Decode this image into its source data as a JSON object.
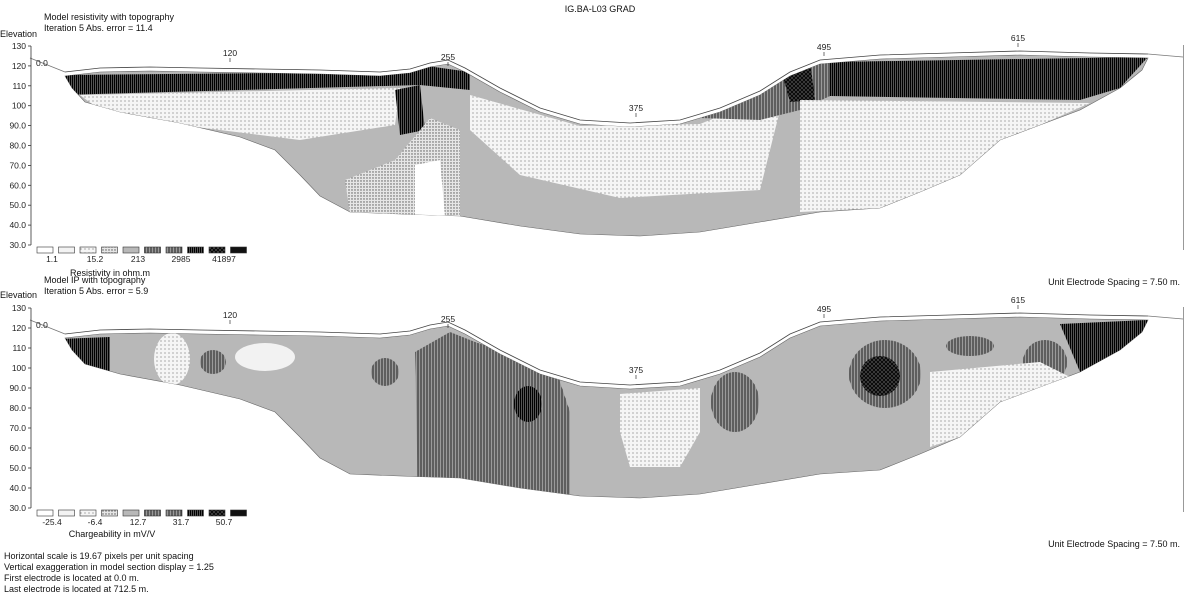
{
  "title": "IG.BA-L03 GRAD",
  "unit_spacing_label": "Unit Electrode Spacing = 7.50 m.",
  "footer_lines": [
    "Horizontal scale is 19.67 pixels per unit spacing",
    "Vertical exaggeration in model section display = 1.25",
    "First electrode is located at 0.0  m.",
    "Last electrode is located at 712.5 m."
  ],
  "colors": {
    "l0": "#ffffff",
    "l1": "#f2f2f2",
    "l2": "#e3e3e3",
    "l3": "#c8c8c8",
    "l4": "#b8b8b8",
    "l5": "#9a9a9a",
    "l6": "#707070",
    "l7": "#3a3a3a",
    "l8": "#111111"
  },
  "chart_data": [
    {
      "type": "heatmap",
      "title": "Model resistivity with topography",
      "subtitle": "Iteration 5 Abs. error = 11.4",
      "ylabel": "Elevation",
      "ylim": [
        30,
        130
      ],
      "yticks": [
        "130",
        "120",
        "110",
        "100",
        "90.0",
        "80.0",
        "70.0",
        "60.0",
        "50.0",
        "40.0",
        "30.0"
      ],
      "xlim": [
        0,
        712.5
      ],
      "x_markers": [
        "0.0",
        "120",
        "255",
        "375",
        "495",
        "615"
      ],
      "legend_values": [
        "1.1",
        "15.2",
        "213",
        "2985",
        "41897"
      ],
      "legend_label": "Resistivity in ohm.m"
    },
    {
      "type": "heatmap",
      "title": "Model IP with topography",
      "subtitle": "Iteration 5 Abs. error = 5.9",
      "ylabel": "Elevation",
      "ylim": [
        30,
        130
      ],
      "yticks": [
        "130",
        "120",
        "110",
        "100",
        "90.0",
        "80.0",
        "70.0",
        "60.0",
        "50.0",
        "40.0",
        "30.0"
      ],
      "xlim": [
        0,
        712.5
      ],
      "x_markers": [
        "0.0",
        "120",
        "255",
        "375",
        "495",
        "615"
      ],
      "legend_values": [
        "-25.4",
        "-6.4",
        "12.7",
        "31.7",
        "50.7"
      ],
      "legend_label": "Chargeability in mV/V"
    }
  ]
}
